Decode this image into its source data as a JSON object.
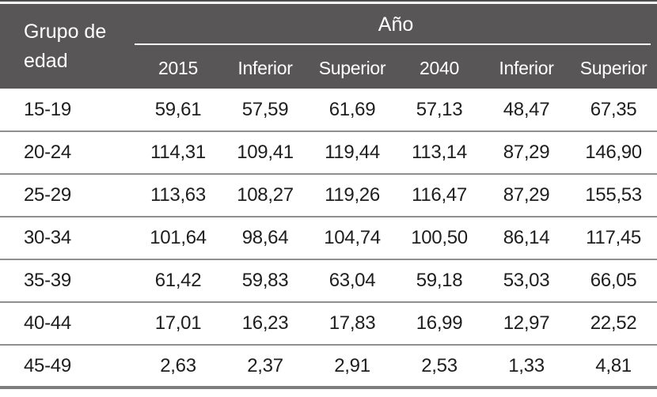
{
  "table": {
    "row_header_title": "Grupo de edad",
    "group_header": "Año",
    "columns": [
      "2015",
      "Inferior",
      "Superior",
      "2040",
      "Inferior",
      "Superior"
    ],
    "rows": [
      {
        "label": "15-19",
        "values": [
          "59,61",
          "57,59",
          "61,69",
          "57,13",
          "48,47",
          "67,35"
        ]
      },
      {
        "label": "20-24",
        "values": [
          "114,31",
          "109,41",
          "119,44",
          "113,14",
          "87,29",
          "146,90"
        ]
      },
      {
        "label": "25-29",
        "values": [
          "113,63",
          "108,27",
          "119,26",
          "116,47",
          "87,29",
          "155,53"
        ]
      },
      {
        "label": "30-34",
        "values": [
          "101,64",
          "98,64",
          "104,74",
          "100,50",
          "86,14",
          "117,45"
        ]
      },
      {
        "label": "35-39",
        "values": [
          "61,42",
          "59,83",
          "63,04",
          "59,18",
          "53,03",
          "66,05"
        ]
      },
      {
        "label": "40-44",
        "values": [
          "17,01",
          "16,23",
          "17,83",
          "16,99",
          "12,97",
          "22,52"
        ]
      },
      {
        "label": "45-49",
        "values": [
          "2,63",
          "2,37",
          "2,91",
          "2,53",
          "1,33",
          "4,81"
        ]
      }
    ]
  },
  "colors": {
    "header_bg": "#595657",
    "header_text": "#ffffff",
    "body_text": "#1f1e1e",
    "row_rule": "#8f8f8f",
    "bottom_rule": "#7d7d7d",
    "top_rule": "#4f4f4f"
  }
}
